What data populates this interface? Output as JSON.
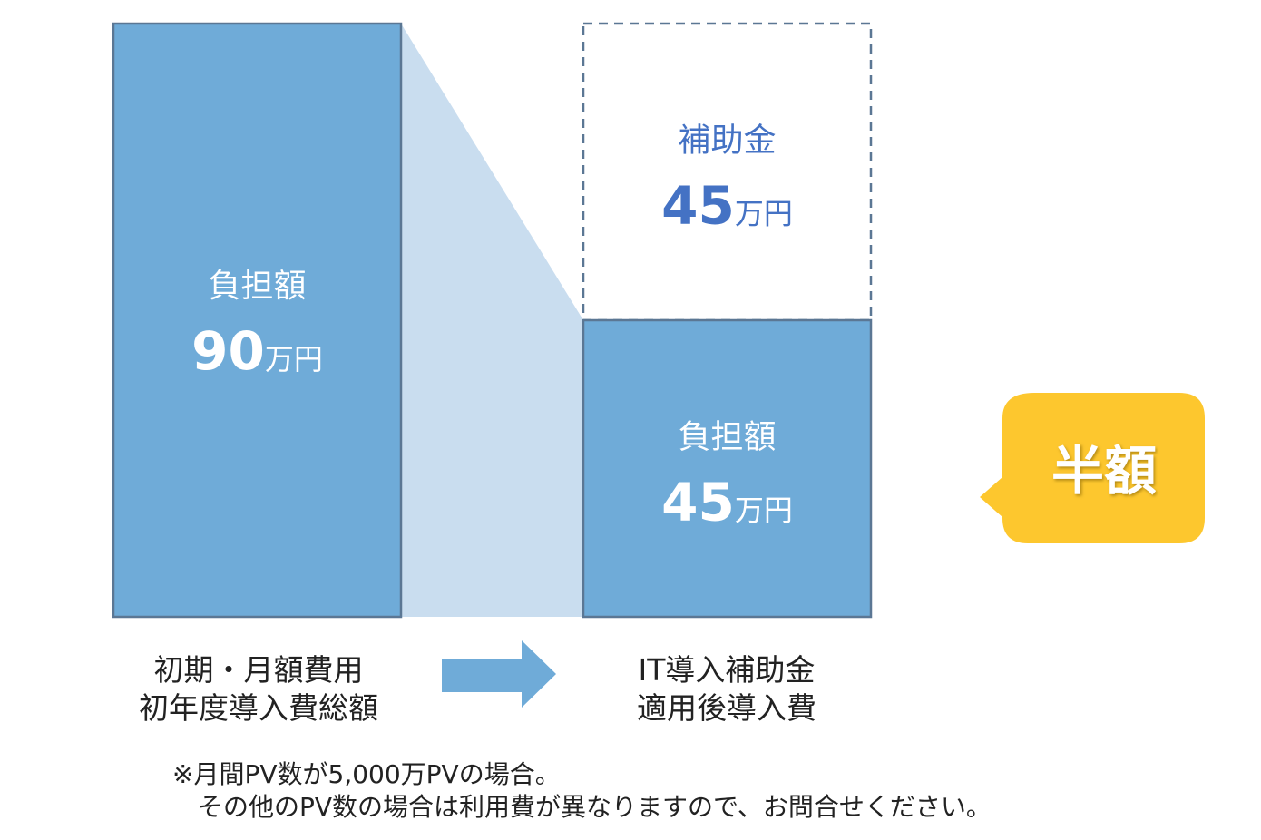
{
  "chart_data": {
    "type": "bar",
    "unit": "万円",
    "categories": [
      "初期・月額費用\n初年度導入費総額",
      "IT導入補助金\n適用後導入費"
    ],
    "bars": [
      {
        "segments": [
          {
            "label": "負担額",
            "value": 90,
            "unit": "万円",
            "style": "solid"
          }
        ]
      },
      {
        "segments": [
          {
            "label": "負担額",
            "value": 45,
            "unit": "万円",
            "style": "solid"
          },
          {
            "label": "補助金",
            "value": 45,
            "unit": "万円",
            "style": "dashed"
          }
        ]
      }
    ],
    "callout": "半額",
    "colors": {
      "bar": "#6fabd8",
      "bar_border": "#5b7794",
      "connector": "#c9ddef",
      "subsidy_text": "#4472c4",
      "dashed": "#5b7794",
      "callout": "#fdc72e",
      "arrow": "#6fabd8"
    }
  },
  "captions": {
    "left": [
      "初期・月額費用",
      "初年度導入費総額"
    ],
    "right": [
      "IT導入補助金",
      "適用後導入費"
    ]
  },
  "note": [
    "※月間PV数が5,000万PVの場合。",
    "　その他のPV数の場合は利用費が異なりますので、お問合せください。"
  ]
}
